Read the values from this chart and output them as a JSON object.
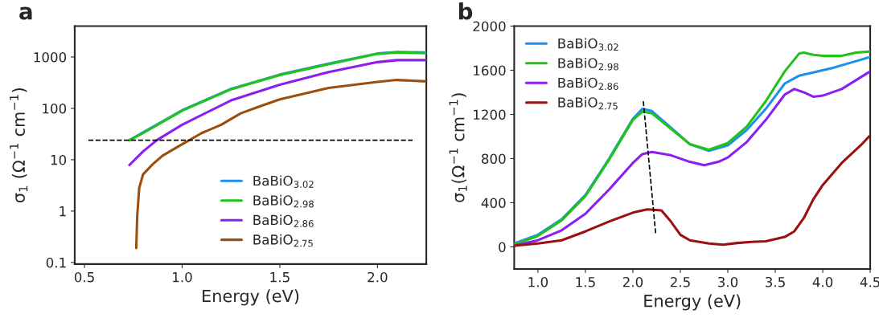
{
  "chart_data": [
    {
      "type": "line",
      "title": "a",
      "xlabel": "Energy (eV)",
      "ylabel": "σ$_{1}$ (Ω$^{−1}$ cm$^{−1}$)",
      "log": "y",
      "grid": false,
      "legend": "bottom",
      "marker": "none",
      "line_style": "solid",
      "xlim": [
        0.45,
        2.25
      ],
      "xticks": [
        {
          "value": 0.5,
          "label": "0.5"
        },
        {
          "value": 1.0,
          "label": "1.0"
        },
        {
          "value": 1.5,
          "label": "1.5"
        },
        {
          "value": 2.0,
          "label": "2.0"
        }
      ],
      "ylim": [
        0.093,
        4000
      ],
      "yticks": [
        0.1,
        1,
        10,
        100,
        1000
      ],
      "series": [
        {
          "name": "BaBiO$_{3.02}$",
          "color": "#1f8ff0",
          "x": [
            0.73,
            0.8,
            1.0,
            1.25,
            1.5,
            1.75,
            2.0,
            2.1,
            2.25
          ],
          "values": [
            24,
            34,
            92,
            240,
            455,
            740,
            1170,
            1250,
            1230
          ]
        },
        {
          "name": "BaBiO$_{2.98}$",
          "color": "#22c21a",
          "x": [
            0.73,
            0.8,
            1.0,
            1.25,
            1.5,
            1.75,
            2.0,
            2.1,
            2.25
          ],
          "values": [
            24,
            33,
            90,
            235,
            445,
            725,
            1150,
            1230,
            1190
          ]
        },
        {
          "name": "BaBiO$_{2.86}$",
          "color": "#8b1ef0",
          "x": [
            0.73,
            0.8,
            0.87,
            1.0,
            1.25,
            1.5,
            1.75,
            2.0,
            2.1,
            2.25
          ],
          "values": [
            7.9,
            14.5,
            24,
            48,
            143,
            288,
            510,
            795,
            870,
            870
          ]
        },
        {
          "name": "BaBiO$_{2.75}$",
          "color": "#9a4f0f",
          "x": [
            0.765,
            0.77,
            0.78,
            0.8,
            0.85,
            0.9,
            1.0,
            1.1,
            1.2,
            1.3,
            1.4,
            1.5,
            1.75,
            2.0,
            2.1,
            2.25
          ],
          "values": [
            0.19,
            0.8,
            2.8,
            5.2,
            8.2,
            12,
            20,
            33,
            48,
            80,
            110,
            150,
            250,
            327,
            357,
            335
          ]
        },
        {
          "type": "line",
          "line_style": "dashed",
          "color": "#000000",
          "x": [
            0.52,
            2.18
          ],
          "values": [
            24,
            24
          ]
        }
      ]
    },
    {
      "type": "line",
      "title": "b",
      "xlabel": "Energy (eV)",
      "ylabel": "σ$_{1}$(Ω$^{−1}$ cm$^{−1}$)",
      "grid": false,
      "legend": "top left",
      "marker": "none",
      "line_style": "solid",
      "xlim": [
        0.75,
        4.5
      ],
      "xticks": [
        {
          "value": 1.0,
          "label": "1.0"
        },
        {
          "value": 1.5,
          "label": "1.5"
        },
        {
          "value": 2.0,
          "label": "2.0"
        },
        {
          "value": 2.5,
          "label": "2.5"
        },
        {
          "value": 3.0,
          "label": "3.0"
        },
        {
          "value": 3.5,
          "label": "3.5"
        },
        {
          "value": 4.0,
          "label": "4.0"
        },
        {
          "value": 4.5,
          "label": "4.5"
        }
      ],
      "ylim": [
        -200,
        2000
      ],
      "yticks": [
        0,
        400,
        800,
        1200,
        1600,
        2000
      ],
      "series": [
        {
          "name": "BaBiO$_{3.02}$",
          "color": "#1f8ff0",
          "x": [
            0.75,
            1.0,
            1.25,
            1.5,
            1.75,
            2.0,
            2.1,
            2.2,
            2.4,
            2.6,
            2.8,
            3.0,
            3.2,
            3.4,
            3.6,
            3.75,
            3.9,
            4.1,
            4.3,
            4.5
          ],
          "values": [
            30,
            110,
            250,
            470,
            800,
            1160,
            1250,
            1230,
            1080,
            930,
            870,
            920,
            1060,
            1250,
            1480,
            1550,
            1580,
            1620,
            1670,
            1720
          ]
        },
        {
          "name": "BaBiO$_{2.98}$",
          "color": "#22c21a",
          "x": [
            0.75,
            1.0,
            1.25,
            1.5,
            1.75,
            2.0,
            2.1,
            2.2,
            2.4,
            2.6,
            2.8,
            3.0,
            3.2,
            3.4,
            3.6,
            3.75,
            3.8,
            3.9,
            4.0,
            4.2,
            4.35,
            4.5
          ],
          "values": [
            20,
            100,
            240,
            460,
            790,
            1150,
            1225,
            1210,
            1070,
            930,
            880,
            940,
            1090,
            1320,
            1590,
            1750,
            1760,
            1740,
            1730,
            1730,
            1760,
            1770
          ]
        },
        {
          "name": "BaBiO$_{2.86}$",
          "color": "#8b1ef0",
          "x": [
            0.75,
            1.0,
            1.25,
            1.5,
            1.75,
            2.0,
            2.1,
            2.2,
            2.4,
            2.6,
            2.75,
            2.9,
            3.0,
            3.2,
            3.4,
            3.6,
            3.7,
            3.8,
            3.9,
            4.0,
            4.2,
            4.5
          ],
          "values": [
            10,
            60,
            150,
            300,
            520,
            760,
            840,
            860,
            830,
            770,
            740,
            770,
            810,
            950,
            1150,
            1380,
            1430,
            1400,
            1360,
            1370,
            1430,
            1590
          ]
        },
        {
          "name": "BaBiO$_{2.75}$",
          "color": "#9b1010",
          "x": [
            0.75,
            1.0,
            1.25,
            1.5,
            1.75,
            2.0,
            2.15,
            2.3,
            2.4,
            2.5,
            2.6,
            2.8,
            2.95,
            3.1,
            3.25,
            3.4,
            3.5,
            3.6,
            3.7,
            3.8,
            3.9,
            4.0,
            4.2,
            4.4,
            4.5
          ],
          "values": [
            10,
            30,
            60,
            140,
            230,
            310,
            340,
            330,
            230,
            110,
            60,
            30,
            20,
            35,
            45,
            50,
            70,
            90,
            140,
            260,
            430,
            560,
            760,
            920,
            1010
          ]
        },
        {
          "type": "line",
          "line_style": "dashed",
          "color": "#000000",
          "x": [
            2.11,
            2.24
          ],
          "values": [
            1320,
            120
          ]
        }
      ]
    }
  ]
}
